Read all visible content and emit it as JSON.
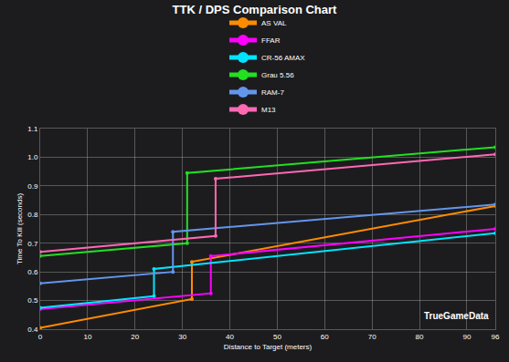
{
  "chart_data": {
    "type": "line",
    "title": "TTK / DPS Comparison Chart",
    "x_label": "Distance to Target (meters)",
    "y_label": "Time To Kill (seconds)",
    "xlim": [
      0,
      96
    ],
    "xticks": [
      0,
      10,
      20,
      30,
      40,
      50,
      60,
      70,
      80,
      90,
      96
    ],
    "ylim": [
      0.4,
      1.1
    ],
    "yticks": [
      0.4,
      0.5,
      0.6,
      0.7,
      0.8,
      0.9,
      {
        "value": 1,
        "label": "1.0"
      },
      1.1
    ],
    "grid": true,
    "legend": "top",
    "marker": "circle",
    "annotations": [
      {
        "text": "TrueGameData"
      }
    ],
    "series": [
      {
        "name": "AS VAL",
        "color": "#ff8c00",
        "x": [
          0,
          32,
          32,
          96
        ],
        "values": [
          0.405,
          0.505,
          0.635,
          0.83
        ]
      },
      {
        "name": "FFAR",
        "color": "#ff00ff",
        "x": [
          0,
          36,
          36,
          96
        ],
        "values": [
          0.47,
          0.525,
          0.655,
          0.75
        ]
      },
      {
        "name": "CR-56 AMAX",
        "color": "#00e5ff",
        "x": [
          0,
          24,
          24,
          96
        ],
        "values": [
          0.475,
          0.515,
          0.61,
          0.735
        ]
      },
      {
        "name": "Grau 5.56",
        "color": "#22e022",
        "x": [
          0,
          31,
          31,
          96
        ],
        "values": [
          0.655,
          0.7,
          0.945,
          1.035
        ]
      },
      {
        "name": "RAM-7",
        "color": "#6495ed",
        "x": [
          0,
          28,
          28,
          96
        ],
        "values": [
          0.56,
          0.6,
          0.74,
          0.835
        ]
      },
      {
        "name": "M13",
        "color": "#ff69b4",
        "x": [
          0,
          37,
          37,
          96
        ],
        "values": [
          0.67,
          0.725,
          0.925,
          1.01
        ]
      }
    ]
  }
}
